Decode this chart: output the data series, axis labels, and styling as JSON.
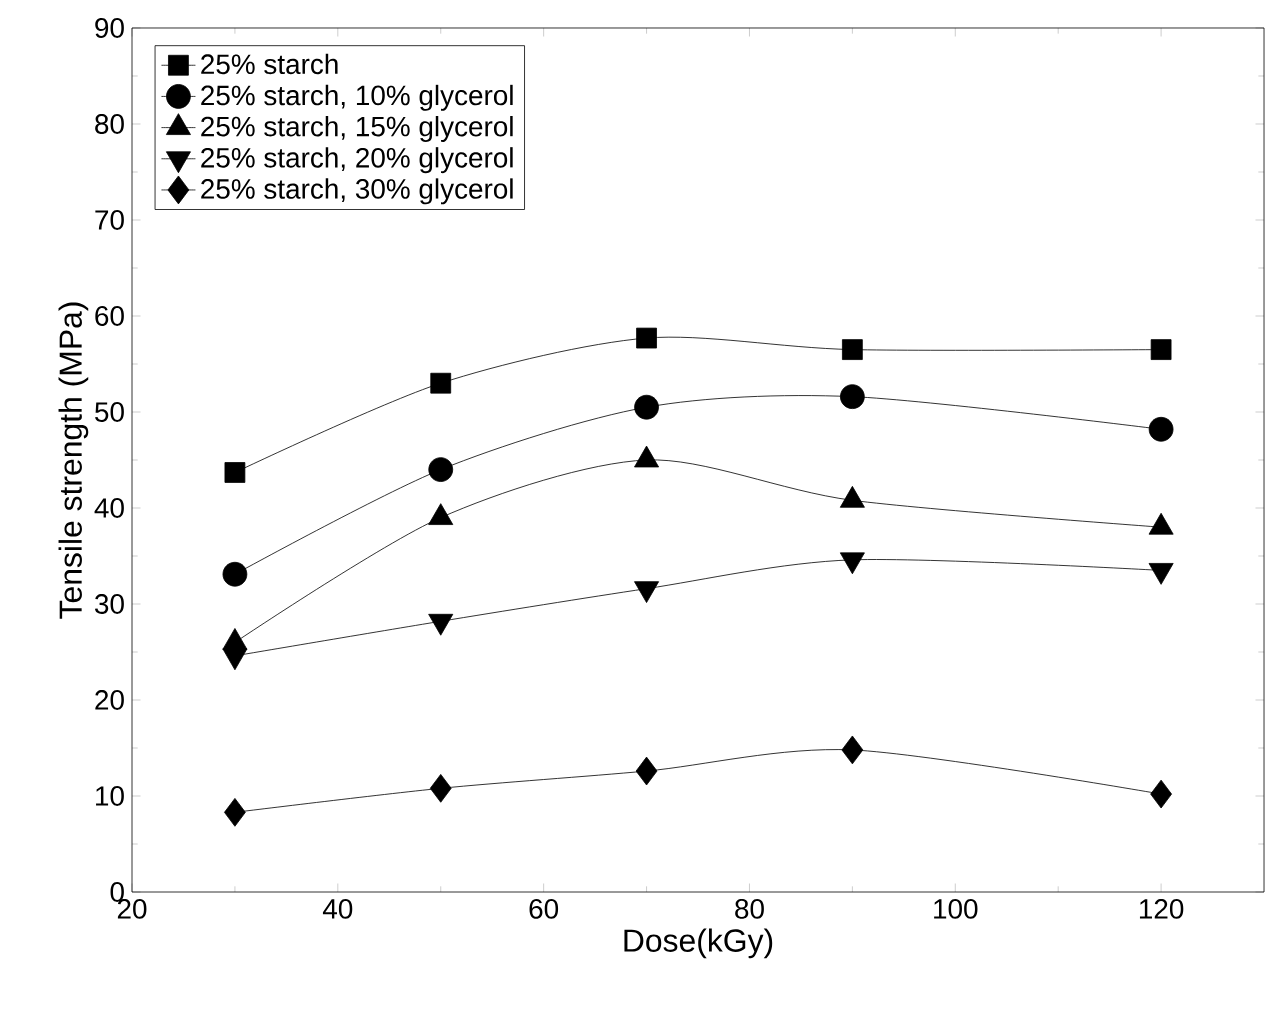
{
  "chart_data": {
    "type": "line",
    "xlabel": "Dose(kGy)",
    "ylabel": "Tensile strength (MPa)",
    "x": [
      30,
      50,
      70,
      90,
      120
    ],
    "xlim": [
      20,
      130
    ],
    "xticks": [
      20,
      40,
      60,
      80,
      100,
      120
    ],
    "ylim": [
      0,
      90
    ],
    "yticks": [
      0,
      10,
      20,
      30,
      40,
      50,
      60,
      70,
      80,
      90
    ],
    "legend": "top left",
    "line_style": "solid",
    "grid": false,
    "series": [
      {
        "name": "25% starch",
        "color": "#000000",
        "marker": "square",
        "values": [
          43.7,
          53.0,
          57.7,
          56.5,
          56.5
        ]
      },
      {
        "name": "25% starch, 10% glycerol",
        "color": "#000000",
        "marker": "circle",
        "values": [
          33.1,
          44.0,
          50.5,
          51.6,
          48.2
        ]
      },
      {
        "name": "25% starch, 15% glycerol",
        "color": "#000000",
        "marker": "triangle",
        "values": [
          26.0,
          39.0,
          45.0,
          40.8,
          38.0
        ]
      },
      {
        "name": "25% starch, 20% glycerol",
        "color": "#000000",
        "marker": "triangle-down",
        "values": [
          24.6,
          28.2,
          31.6,
          34.6,
          33.5
        ]
      },
      {
        "name": "25% starch, 30% glycerol",
        "color": "#000000",
        "marker": "diamond",
        "values": [
          8.3,
          10.8,
          12.6,
          14.8,
          10.2
        ]
      }
    ]
  }
}
